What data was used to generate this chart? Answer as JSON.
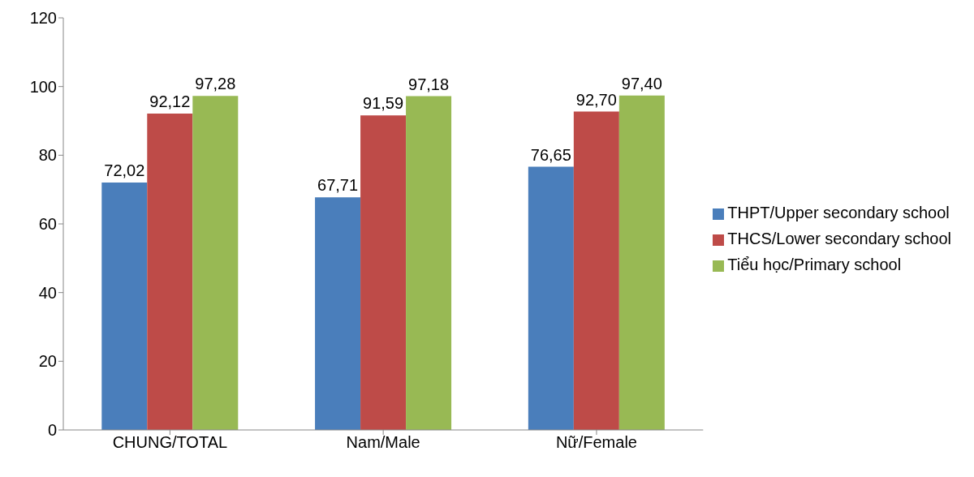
{
  "chart_data": {
    "type": "bar",
    "categories": [
      "CHUNG/TOTAL",
      "Nam/Male",
      "Nữ/Female"
    ],
    "series": [
      {
        "name": "THPT/Upper secondary school",
        "color": "#4a7ebb",
        "values": [
          72.02,
          67.71,
          76.65
        ],
        "value_labels": [
          "72,02",
          "67,71",
          "76,65"
        ]
      },
      {
        "name": "THCS/Lower secondary school",
        "color": "#be4b48",
        "values": [
          92.12,
          91.59,
          92.7
        ],
        "value_labels": [
          "92,12",
          "91,59",
          "92,70"
        ]
      },
      {
        "name": "Tiểu học/Primary school",
        "color": "#98b954",
        "values": [
          97.28,
          97.18,
          97.4
        ],
        "value_labels": [
          "97,28",
          "97,18",
          "97,40"
        ]
      }
    ],
    "ylim": [
      0,
      120
    ],
    "yticks": [
      0,
      20,
      40,
      60,
      80,
      100,
      120
    ],
    "grid": false,
    "legend": "right"
  }
}
